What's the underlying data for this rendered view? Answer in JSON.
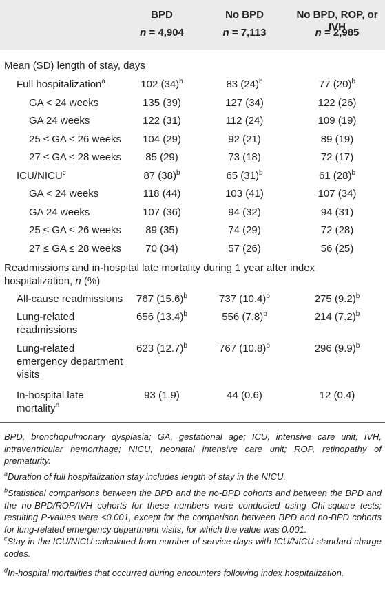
{
  "header": {
    "col1": {
      "title": "BPD",
      "n_label": "n",
      "n_value": "= 4,904"
    },
    "col2": {
      "title": "No BPD",
      "n_label": "n",
      "n_value": "= 7,113"
    },
    "col3": {
      "title": "No BPD, ROP, or IVH",
      "n_label": "n",
      "n_value": "= 2,985"
    }
  },
  "section1": {
    "title": "Mean (SD) length of stay, days"
  },
  "rows1": [
    {
      "label": "Full hospitalization",
      "label_sup": "a",
      "v1": "102 (34)",
      "s1": "b",
      "v2": "83 (24)",
      "s2": "b",
      "v3": "77 (20)",
      "s3": "b"
    },
    {
      "label": "GA < 24 weeks",
      "v1": "135 (39)",
      "v2": "127 (34)",
      "v3": "122 (26)"
    },
    {
      "label": "GA 24 weeks",
      "v1": "122 (31)",
      "v2": "112 (24)",
      "v3": "109 (19)"
    },
    {
      "label": "25 ≤ GA ≤ 26 weeks",
      "v1": "104 (29)",
      "v2": "92 (21)",
      "v3": "89 (19)"
    },
    {
      "label": "27 ≤ GA ≤ 28 weeks",
      "v1": "85 (29)",
      "v2": "73 (18)",
      "v3": "72 (17)"
    },
    {
      "label": "ICU/NICU",
      "label_sup": "c",
      "v1": "87 (38)",
      "s1": "b",
      "v2": "65 (31)",
      "s2": "b",
      "v3": "61 (28)",
      "s3": "b"
    },
    {
      "label": "GA < 24 weeks",
      "v1": "118 (44)",
      "v2": "103 (41)",
      "v3": "107 (34)"
    },
    {
      "label": "GA 24 weeks",
      "v1": "107 (36)",
      "v2": "94 (32)",
      "v3": "94 (31)"
    },
    {
      "label": "25 ≤ GA ≤ 26 weeks",
      "v1": "89 (35)",
      "v2": "74 (29)",
      "v3": "72 (28)"
    },
    {
      "label": "27 ≤ GA ≤ 28 weeks",
      "v1": "70 (34)",
      "v2": "57 (26)",
      "v3": "56 (25)"
    }
  ],
  "section2": {
    "line1": "Readmissions and in-hospital late mortality during 1 year after index",
    "line2a": "hospitalization, ",
    "line2n": "n",
    "line2b": " (%)"
  },
  "rows2": [
    {
      "label1": "All-cause readmissions",
      "v1": "767 (15.6)",
      "s1": "b",
      "v2": "737 (10.4)",
      "s2": "b",
      "v3": "275 (9.2)",
      "s3": "b"
    },
    {
      "label1": "Lung-related",
      "label2": "readmissions",
      "v1": "656 (13.4)",
      "s1": "b",
      "v2": "556 (7.8)",
      "s2": "b",
      "v3": "214 (7.2)",
      "s3": "b"
    },
    {
      "label1": "Lung-related",
      "label2": "emergency department",
      "label3": "visits",
      "v1": "623 (12.7)",
      "s1": "b",
      "v2": "767 (10.8)",
      "s2": "b",
      "v3": "296 (9.9)",
      "s3": "b"
    },
    {
      "label1": "In-hospital late",
      "label2": "mortality",
      "label2_sup": "d",
      "v1": "93 (1.9)",
      "v2": "44 (0.6)",
      "v3": "12 (0.4)"
    }
  ],
  "footnotes": {
    "abbrev": "BPD, bronchopulmonary dysplasia; GA, gestational age; ICU, intensive care unit; IVH, intraventricular hemorrhage; NICU, neonatal intensive care unit; ROP, retinopathy of prematurity.",
    "a_mark": "a",
    "a": "Duration of full hospitalization stay includes length of stay in the NICU.",
    "b_mark": "b",
    "b": "Statistical comparisons between the BPD and the no-BPD cohorts and between the BPD and the no-BPD/ROP/IVH cohorts for these numbers were conducted using Chi-square tests; resulting P-values were <0.001, except for the comparison between BPD and no-BPD cohorts for lung-related emergency department visits, for which the value was 0.001.",
    "c_mark": "c",
    "c": "Stay in the ICU/NICU calculated from number of service days with ICU/NICU standard charge codes.",
    "d_mark": "d",
    "d": "In-hospital mortalities that occurred during encounters following index hospitalization."
  }
}
